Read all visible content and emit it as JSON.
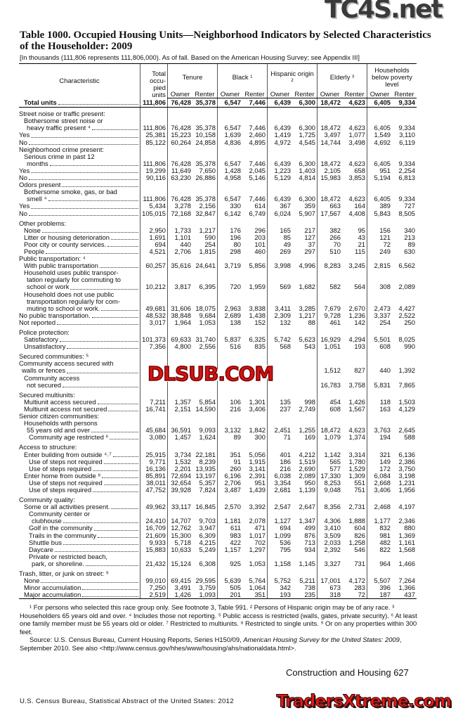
{
  "title": "Table 1000. Occupied Housing Units—Neighborhood Indicators by Selected Characteristics of the Householder: 2009",
  "headnote": "[In thousands (111,806 represents 111,806,000). As of fall. Based on the American Housing Survey; see Appendix III]",
  "columns": {
    "characteristic": "Characteristic",
    "total": "Total occu- pied units",
    "groups": [
      "Tenure",
      "Black ¹",
      "Hispanic origin ²",
      "Elderly ³",
      "Households below poverty level"
    ],
    "owner": "Owner",
    "renter": "Renter"
  },
  "rows": [
    {
      "label": [
        "Total units"
      ],
      "indent": 1,
      "total": true,
      "v": [
        "111,806",
        "76,428",
        "35,378",
        "6,547",
        "7,446",
        "6,439",
        "6,300",
        "18,472",
        "4,623",
        "6,405",
        "9,334"
      ]
    },
    {
      "label": [
        "Street noise or traffic present:"
      ],
      "indent": 0,
      "gap": true
    },
    {
      "label": [
        "Bothersome street noise or",
        "heavy traffic present ⁴"
      ],
      "indent": 1,
      "v": [
        "111,806",
        "76,428",
        "35,378",
        "6,547",
        "7,446",
        "6,439",
        "6,300",
        "18,472",
        "4,623",
        "6,405",
        "9,334"
      ]
    },
    {
      "label": [
        "Yes"
      ],
      "indent": 0,
      "v": [
        "25,381",
        "15,223",
        "10,158",
        "1,639",
        "2,460",
        "1,419",
        "1,725",
        "3,497",
        "1,077",
        "1,549",
        "3,110"
      ]
    },
    {
      "label": [
        "No"
      ],
      "indent": 0,
      "v": [
        "85,122",
        "60,264",
        "24,858",
        "4,836",
        "4,895",
        "4,972",
        "4,545",
        "14,744",
        "3,498",
        "4,692",
        "6,119"
      ]
    },
    {
      "label": [
        "Neighborhood crime present:"
      ],
      "indent": 0
    },
    {
      "label": [
        "Serious crime in past 12",
        "months"
      ],
      "indent": 1,
      "v": [
        "111,806",
        "76,428",
        "35,378",
        "6,547",
        "7,446",
        "6,439",
        "6,300",
        "18,472",
        "4,623",
        "6,405",
        "9,334"
      ]
    },
    {
      "label": [
        "Yes"
      ],
      "indent": 0,
      "v": [
        "19,299",
        "11,649",
        "7,650",
        "1,428",
        "2,045",
        "1,223",
        "1,403",
        "2,105",
        "658",
        "951",
        "2,254"
      ]
    },
    {
      "label": [
        "No"
      ],
      "indent": 0,
      "v": [
        "90,116",
        "63,230",
        "26,886",
        "4,958",
        "5,146",
        "5,129",
        "4,814",
        "15,983",
        "3,853",
        "5,194",
        "6,813"
      ]
    },
    {
      "label": [
        "Odors present"
      ],
      "indent": 0,
      "leader": true
    },
    {
      "label": [
        "Bothersome smoke, gas, or bad",
        "smell ⁴"
      ],
      "indent": 1,
      "v": [
        "111,806",
        "76,428",
        "35,378",
        "6,547",
        "7,446",
        "6,439",
        "6,300",
        "18,472",
        "4,623",
        "6,405",
        "9,334"
      ]
    },
    {
      "label": [
        "Yes"
      ],
      "indent": 0,
      "v": [
        "5,434",
        "3,278",
        "2,156",
        "330",
        "614",
        "367",
        "359",
        "663",
        "164",
        "389",
        "727"
      ]
    },
    {
      "label": [
        "No"
      ],
      "indent": 0,
      "v": [
        "105,015",
        "72,168",
        "32,847",
        "6,142",
        "6,749",
        "6,024",
        "5,907",
        "17,567",
        "4,408",
        "5,843",
        "8,505"
      ]
    },
    {
      "label": [
        "Other problems:"
      ],
      "indent": 0,
      "gap": true
    },
    {
      "label": [
        "Noise"
      ],
      "indent": 1,
      "v": [
        "2,950",
        "1,733",
        "1,217",
        "176",
        "296",
        "165",
        "217",
        "382",
        "95",
        "156",
        "340"
      ]
    },
    {
      "label": [
        "Litter or housing deterioration"
      ],
      "indent": 1,
      "v": [
        "1,691",
        "1,101",
        "590",
        "196",
        "203",
        "85",
        "127",
        "266",
        "43",
        "121",
        "213"
      ]
    },
    {
      "label": [
        "Poor city or county services."
      ],
      "indent": 1,
      "v": [
        "694",
        "440",
        "254",
        "80",
        "101",
        "49",
        "37",
        "70",
        "21",
        "72",
        "89"
      ]
    },
    {
      "label": [
        "People"
      ],
      "indent": 1,
      "v": [
        "4,521",
        "2,706",
        "1,815",
        "298",
        "460",
        "269",
        "297",
        "510",
        "115",
        "249",
        "630"
      ]
    },
    {
      "label": [
        "Public transportation: ⁴"
      ],
      "indent": 0
    },
    {
      "label": [
        "With public transportation"
      ],
      "indent": 1,
      "v": [
        "60,257",
        "35,616",
        "24,641",
        "3,719",
        "5,856",
        "3,998",
        "4,996",
        "8,283",
        "3,245",
        "2,815",
        "6,562"
      ]
    },
    {
      "label": [
        "Household uses public transpor-",
        "tation regularly for commuting to",
        "school or work"
      ],
      "indent": 1,
      "v": [
        "10,212",
        "3,817",
        "6,395",
        "720",
        "1,959",
        "569",
        "1,682",
        "582",
        "564",
        "308",
        "2,089"
      ]
    },
    {
      "label": [
        "Household does not use public",
        "transportation regularly for com-",
        "muting to school or work."
      ],
      "indent": 1,
      "v": [
        "49,681",
        "31,606",
        "18,075",
        "2,963",
        "3,838",
        "3,411",
        "3,285",
        "7,679",
        "2,670",
        "2,473",
        "4,427"
      ]
    },
    {
      "label": [
        "No public transportation."
      ],
      "indent": 0,
      "v": [
        "48,532",
        "38,848",
        "9,684",
        "2,689",
        "1,438",
        "2,309",
        "1,217",
        "9,728",
        "1,236",
        "3,337",
        "2,522"
      ]
    },
    {
      "label": [
        "Not reported"
      ],
      "indent": 0,
      "v": [
        "3,017",
        "1,964",
        "1,053",
        "138",
        "152",
        "132",
        "88",
        "461",
        "142",
        "254",
        "250"
      ]
    },
    {
      "label": [
        "Police protection:"
      ],
      "indent": 0,
      "gap": true
    },
    {
      "label": [
        "Satisfactory"
      ],
      "indent": 1,
      "v": [
        "101,373",
        "69,633",
        "31,740",
        "5,837",
        "6,325",
        "5,742",
        "5,623",
        "16,929",
        "4,294",
        "5,501",
        "8,025"
      ]
    },
    {
      "label": [
        "Unsatisfactory"
      ],
      "indent": 1,
      "v": [
        "7,356",
        "4,800",
        "2,556",
        "516",
        "835",
        "568",
        "543",
        "1,051",
        "193",
        "608",
        "990"
      ]
    },
    {
      "label": [
        "Secured communities: ⁵"
      ],
      "indent": 0,
      "gap": true
    },
    {
      "label": [
        "Community access secured with",
        "walls or fences"
      ],
      "indent": 0,
      "v": [
        null,
        null,
        null,
        null,
        null,
        null,
        null,
        "1,512",
        "827",
        "440",
        "1,392"
      ]
    },
    {
      "label": [
        "Community access",
        "not secured"
      ],
      "indent": 1,
      "v": [
        null,
        null,
        null,
        null,
        null,
        null,
        null,
        "16,783",
        "3,758",
        "5,831",
        "7,865"
      ]
    },
    {
      "label": [
        "Secured multiunits:"
      ],
      "indent": 0,
      "gap": true
    },
    {
      "label": [
        "Multiunit access secured"
      ],
      "indent": 1,
      "v": [
        "7,211",
        "1,357",
        "5,854",
        "106",
        "1,301",
        "135",
        "998",
        "454",
        "1,426",
        "118",
        "1,503"
      ]
    },
    {
      "label": [
        "Multiunit access not secured"
      ],
      "indent": 1,
      "v": [
        "16,741",
        "2,151",
        "14,590",
        "216",
        "3,406",
        "237",
        "2,749",
        "608",
        "1,567",
        "163",
        "4,129"
      ]
    },
    {
      "label": [
        "Senior citizen communities:"
      ],
      "indent": 0
    },
    {
      "label": [
        "Households with persons",
        "55 years old and over"
      ],
      "indent": 1,
      "v": [
        "45,684",
        "36,591",
        "9,093",
        "3,132",
        "1,842",
        "2,451",
        "1,255",
        "18,472",
        "4,623",
        "3,763",
        "2,645"
      ]
    },
    {
      "label": [
        "Community age restricted ⁶"
      ],
      "indent": 2,
      "v": [
        "3,080",
        "1,457",
        "1,624",
        "89",
        "300",
        "71",
        "169",
        "1,079",
        "1,374",
        "194",
        "588"
      ]
    },
    {
      "label": [
        "Access to structure:"
      ],
      "indent": 0,
      "gap": true
    },
    {
      "label": [
        "Enter building from outside ⁴˒⁷"
      ],
      "indent": 1,
      "v": [
        "25,915",
        "3,734",
        "22,181",
        "351",
        "5,056",
        "401",
        "4,212",
        "1,142",
        "3,314",
        "321",
        "6,136"
      ]
    },
    {
      "label": [
        "Use of steps not required"
      ],
      "indent": 2,
      "v": [
        "9,771",
        "1,532",
        "8,239",
        "91",
        "1,915",
        "186",
        "1,519",
        "565",
        "1,780",
        "149",
        "2,386"
      ]
    },
    {
      "label": [
        "Use of steps required"
      ],
      "indent": 2,
      "v": [
        "16,136",
        "2,201",
        "13,935",
        "260",
        "3,141",
        "216",
        "2,690",
        "577",
        "1,529",
        "172",
        "3,750"
      ]
    },
    {
      "label": [
        "Enter home from outside ⁸"
      ],
      "indent": 1,
      "v": [
        "85,891",
        "72,694",
        "13,197",
        "6,196",
        "2,391",
        "6,038",
        "2,089",
        "17,330",
        "1,309",
        "6,084",
        "3,198"
      ]
    },
    {
      "label": [
        "Use of steps not required"
      ],
      "indent": 2,
      "v": [
        "38,011",
        "32,654",
        "5,357",
        "2,706",
        "951",
        "3,354",
        "950",
        "8,253",
        "551",
        "2,668",
        "1,231"
      ]
    },
    {
      "label": [
        "Use of steps required"
      ],
      "indent": 2,
      "v": [
        "47,752",
        "39,928",
        "7,824",
        "3,487",
        "1,439",
        "2,681",
        "1,139",
        "9,048",
        "751",
        "3,406",
        "1,956"
      ]
    },
    {
      "label": [
        "Community quality:"
      ],
      "indent": 0,
      "gap": true
    },
    {
      "label": [
        "Some or all activities present."
      ],
      "indent": 1,
      "v": [
        "49,962",
        "33,117",
        "16,845",
        "2,570",
        "3,392",
        "2,547",
        "2,647",
        "8,356",
        "2,731",
        "2,468",
        "4,197"
      ]
    },
    {
      "label": [
        "Community center or",
        "clubhouse"
      ],
      "indent": 2,
      "v": [
        "24,410",
        "14,707",
        "9,703",
        "1,181",
        "2,078",
        "1,127",
        "1,347",
        "4,306",
        "1,888",
        "1,177",
        "2,346"
      ]
    },
    {
      "label": [
        "Golf in the community"
      ],
      "indent": 2,
      "v": [
        "16,709",
        "12,762",
        "3,947",
        "611",
        "471",
        "694",
        "499",
        "3,410",
        "604",
        "832",
        "880"
      ]
    },
    {
      "label": [
        "Trails in the community"
      ],
      "indent": 2,
      "v": [
        "21,609",
        "15,300",
        "6,309",
        "983",
        "1,017",
        "1,099",
        "876",
        "3,509",
        "826",
        "981",
        "1,369"
      ]
    },
    {
      "label": [
        "Shuttle bus"
      ],
      "indent": 2,
      "v": [
        "9,933",
        "5,718",
        "4,215",
        "422",
        "702",
        "536",
        "713",
        "2,033",
        "1,258",
        "482",
        "1,161"
      ]
    },
    {
      "label": [
        "Daycare"
      ],
      "indent": 2,
      "v": [
        "15,883",
        "10,633",
        "5,249",
        "1,157",
        "1,297",
        "795",
        "934",
        "2,392",
        "546",
        "822",
        "1,568"
      ]
    },
    {
      "label": [
        "Private or restricted beach,",
        "park, or shoreline."
      ],
      "indent": 2,
      "v": [
        "21,432",
        "15,124",
        "6,308",
        "925",
        "1,053",
        "1,158",
        "1,145",
        "3,327",
        "731",
        "964",
        "1,466"
      ]
    },
    {
      "label": [
        "Trash, litter, or junk on street: ⁹"
      ],
      "indent": 0,
      "gap": true
    },
    {
      "label": [
        "None"
      ],
      "indent": 1,
      "v": [
        "99,010",
        "69,415",
        "29,595",
        "5,639",
        "5,764",
        "5,752",
        "5,211",
        "17,001",
        "4,172",
        "5,507",
        "7,264"
      ]
    },
    {
      "label": [
        "Minor accumulation"
      ],
      "indent": 1,
      "v": [
        "7,250",
        "3,491",
        "3,759",
        "505",
        "1,064",
        "342",
        "738",
        "673",
        "283",
        "396",
        "1,366"
      ]
    },
    {
      "label": [
        "Major accumulation"
      ],
      "indent": 1,
      "last": true,
      "v": [
        "2,519",
        "1,426",
        "1,093",
        "201",
        "351",
        "193",
        "235",
        "318",
        "72",
        "187",
        "437"
      ]
    }
  ],
  "footnotes": "¹ For persons who selected this race group only. See footnote 3, Table 991. ² Persons of Hispanic origin may be of any race. ³ Householders 65 years old and over. ⁴ Includes those not reporting. ⁵ Public access is restricted (walls, gates, private security). ⁶ At least one family member must be 55 years old or older. ⁷ Restricted to multiunits. ⁸ Restricted to single units. ⁹ Or on any properties within 300 feet.",
  "source_prefix": "Source: U.S. Census Bureau, Current Housing Reports, Series H150/09, ",
  "source_italic": "American Housing Survey for the United States: 2009",
  "source_suffix": ", September 2010. See also <http://www.census.gov/hhes/www/housing/ahs/nationaldata.html>.",
  "page_footer": "Construction and Housing  627",
  "credit_line": "U.S. Census Bureau, Statistical Abstract of the United States: 2012",
  "watermarks": [
    "TC4S.net",
    "DLSUB.COM",
    "TradersXtreme.com"
  ]
}
